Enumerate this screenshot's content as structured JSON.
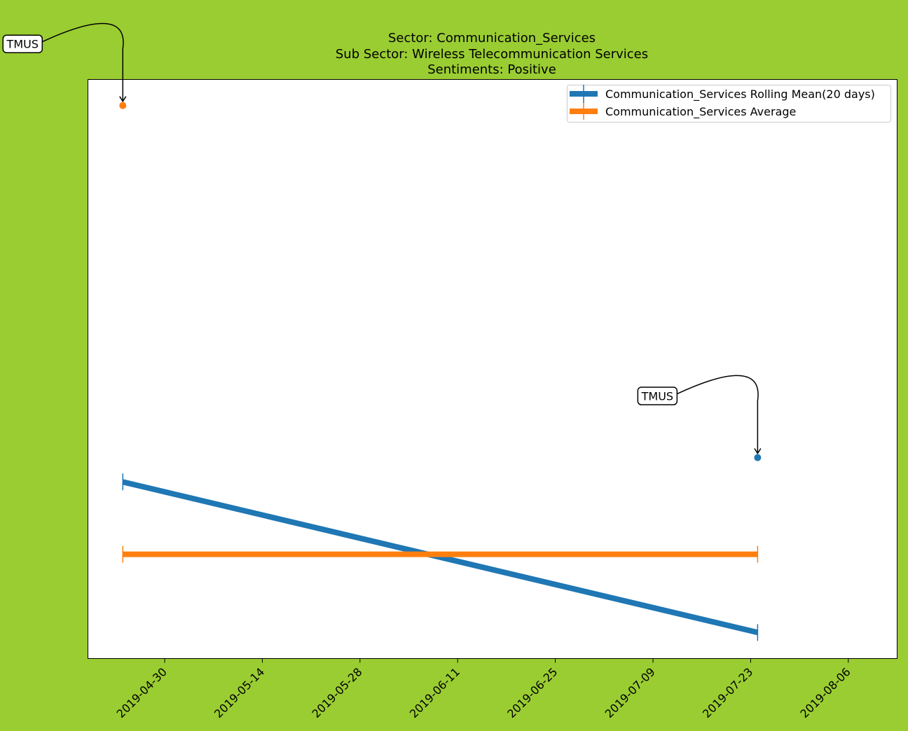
{
  "figure": {
    "background_color": "#9acd32"
  },
  "chart_data": {
    "type": "line",
    "title_lines": [
      "Sector:  Communication_Services",
      "Sub Sector:  Wireless Telecommunication Services",
      "Sentiments:  Positive"
    ],
    "xlabel": "",
    "ylabel": "",
    "x_axis_type": "date",
    "xlim": [
      "2019-04-19",
      "2019-08-13"
    ],
    "ylim": [
      0,
      1
    ],
    "x_ticks": [
      "2019-04-30",
      "2019-05-14",
      "2019-05-28",
      "2019-06-11",
      "2019-06-25",
      "2019-07-09",
      "2019-07-23",
      "2019-08-06"
    ],
    "y_ticks_visible": false,
    "grid": false,
    "legend_position": "upper right",
    "series": [
      {
        "name": "Communication_Services Rolling Mean(20 days)",
        "color": "#1f77b4",
        "x": [
          "2019-04-24",
          "2019-07-24"
        ],
        "y": [
          0.305,
          0.045
        ]
      },
      {
        "name": "Communication_Services Average",
        "color": "#ff7f0e",
        "x": [
          "2019-04-24",
          "2019-07-24"
        ],
        "y": [
          0.18,
          0.18
        ]
      }
    ],
    "points": [
      {
        "x": "2019-04-24",
        "y": 0.955,
        "color": "#ff7f0e"
      },
      {
        "x": "2019-07-24",
        "y": 0.347,
        "color": "#1f77b4"
      }
    ],
    "annotations": [
      {
        "text": "TMUS",
        "x": "2019-04-24",
        "y": 0.955
      },
      {
        "text": "TMUS",
        "x": "2019-07-24",
        "y": 0.347
      }
    ]
  }
}
